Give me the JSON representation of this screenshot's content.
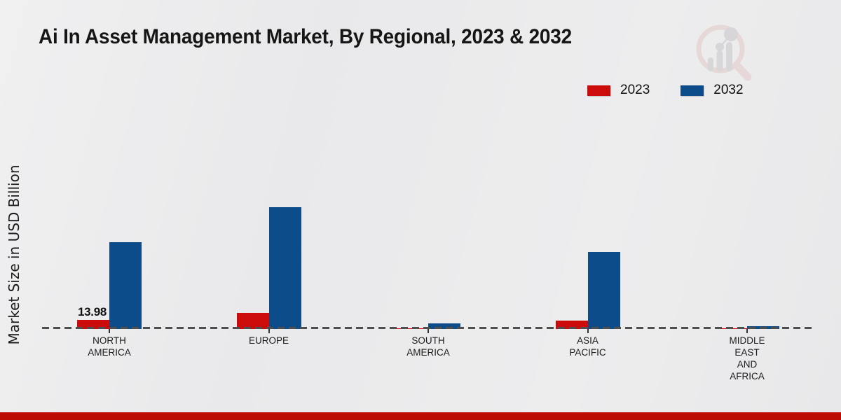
{
  "chart_data": {
    "type": "bar",
    "title": "Ai In Asset Management Market, By Regional, 2023 & 2032",
    "ylabel": "Market Size in USD Billion",
    "xlabel": "",
    "ylim": [
      0,
      200
    ],
    "grid": false,
    "legend_position": "top-right",
    "baseline_style": "dashed",
    "categories": [
      "NORTH AMERICA",
      "EUROPE",
      "SOUTH AMERICA",
      "ASIA PACIFIC",
      "MIDDLE EAST AND AFRICA"
    ],
    "category_display_lines": [
      [
        "NORTH",
        "AMERICA"
      ],
      [
        "EUROPE"
      ],
      [
        "SOUTH",
        "AMERICA"
      ],
      [
        "ASIA",
        "PACIFIC"
      ],
      [
        "MIDDLE",
        "EAST",
        "AND",
        "AFRICA"
      ]
    ],
    "series": [
      {
        "name": "2023",
        "color": "#cc0c0a",
        "values": [
          13.98,
          24.7,
          0.6,
          12.4,
          0.4
        ]
      },
      {
        "name": "2032",
        "color": "#0d4c8b",
        "values": [
          133.4,
          187.1,
          8.1,
          118.3,
          4.8
        ]
      }
    ],
    "data_labels": [
      {
        "series": "2023",
        "category": "NORTH AMERICA",
        "text": "13.98"
      }
    ]
  },
  "legend": {
    "items": [
      {
        "label": "2023",
        "color": "#cc0c0a"
      },
      {
        "label": "2032",
        "color": "#0d4c8b"
      }
    ]
  },
  "branding": {
    "logo_icon": "magnifier-bar-chart-watermark-icon",
    "footer_bar_color": "#bb0b02"
  },
  "colors": {
    "background_start": "#f0f0f1",
    "background_end": "#e8e8ea",
    "axis_dash": "#4f4f4f",
    "text": "#1a1a1a"
  }
}
